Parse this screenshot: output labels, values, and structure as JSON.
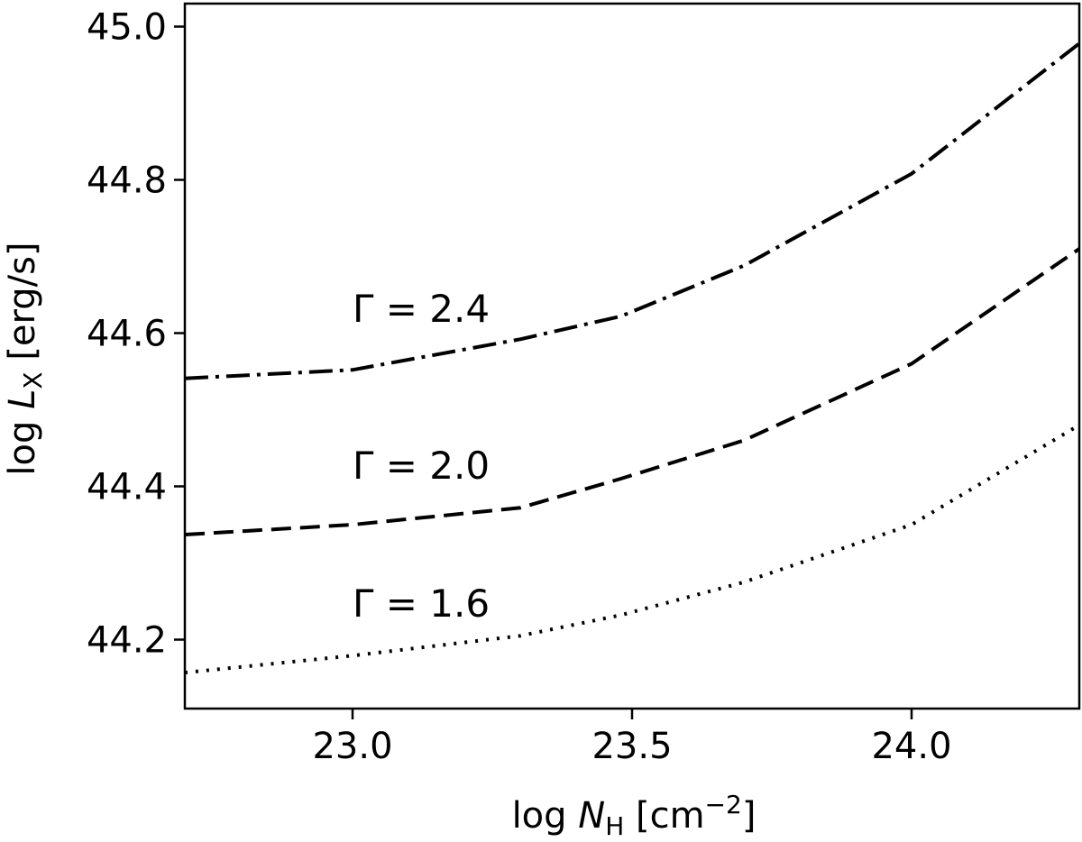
{
  "chart_data": {
    "type": "line",
    "xlabel": {
      "prefix": "log ",
      "var": "N",
      "sub": "H",
      "unit_open": " [cm",
      "sup": "−2",
      "unit_close": "]"
    },
    "ylabel": {
      "prefix": "log ",
      "var": "L",
      "sub": "X",
      "unit": " [erg/s]"
    },
    "xlim": [
      22.7,
      24.3
    ],
    "ylim": [
      44.11,
      45.03
    ],
    "xticks": [
      23.0,
      23.5,
      24.0
    ],
    "xtick_labels": [
      "23.0",
      "23.5",
      "24.0"
    ],
    "yticks": [
      44.2,
      44.4,
      44.6,
      44.8,
      45.0
    ],
    "ytick_labels": [
      "44.2",
      "44.4",
      "44.6",
      "44.8",
      "45.0"
    ],
    "grid": false,
    "legend": "none",
    "series": [
      {
        "style": "dotted",
        "x": [
          22.7,
          23.0,
          23.3,
          23.48,
          23.7,
          24.0,
          24.3
        ],
        "y": [
          44.157,
          44.179,
          44.205,
          44.232,
          44.275,
          44.35,
          44.48
        ]
      },
      {
        "style": "dashed",
        "x": [
          22.7,
          23.0,
          23.3,
          23.48,
          23.7,
          24.0,
          24.3
        ],
        "y": [
          44.337,
          44.35,
          44.372,
          44.41,
          44.46,
          44.56,
          44.71
        ]
      },
      {
        "style": "dashdot",
        "x": [
          22.7,
          23.0,
          23.3,
          23.48,
          23.7,
          24.0,
          24.3
        ],
        "y": [
          44.541,
          44.552,
          44.592,
          44.622,
          44.688,
          44.808,
          44.978
        ]
      }
    ],
    "annotations": [
      {
        "text": "Γ = 2.4",
        "x": 23.0,
        "y": 44.615,
        "series": 2
      },
      {
        "text": "Γ = 2.0",
        "x": 23.0,
        "y": 44.41,
        "series": 1
      },
      {
        "text": "Γ = 1.6",
        "x": 23.0,
        "y": 44.23,
        "series": 0
      }
    ]
  }
}
